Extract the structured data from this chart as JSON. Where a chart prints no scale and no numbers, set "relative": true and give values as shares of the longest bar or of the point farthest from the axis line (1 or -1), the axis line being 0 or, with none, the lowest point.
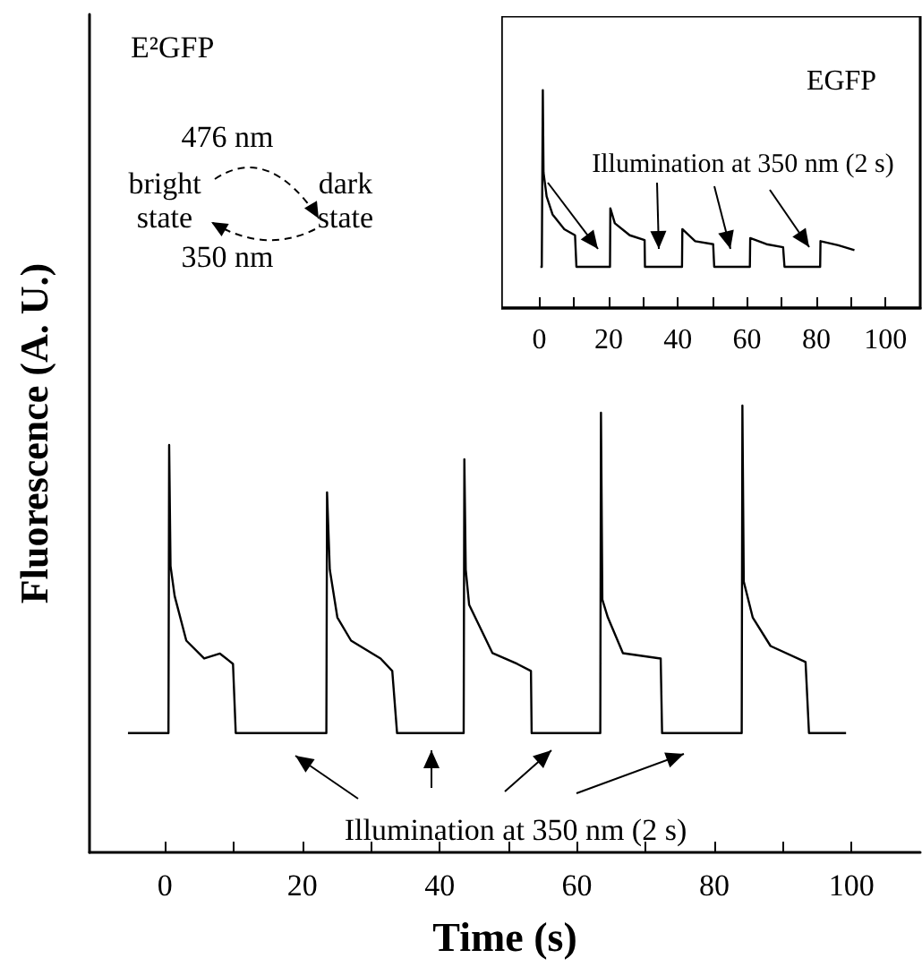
{
  "chart_data": [
    {
      "type": "line",
      "xlabel": "Time (s)",
      "ylabel": "Fluorescence (A. U.)",
      "relative": true,
      "tick_labels": "x",
      "marker": "none",
      "xlim": [
        -11,
        110
      ],
      "xticks": [
        0,
        {
          "value": 10,
          "label": null
        },
        20,
        {
          "value": 30,
          "label": null
        },
        40,
        {
          "value": 50,
          "label": null
        },
        60,
        {
          "value": 70,
          "label": null
        },
        80,
        {
          "value": 90,
          "label": null
        },
        100
      ],
      "annotations": [
        "E²GFP",
        "476 nm",
        "bright state",
        "dark state",
        "350 nm",
        "Illumination at 350 nm (2 s)"
      ],
      "series": [
        {
          "color": "#000000",
          "x": [
            -5.4,
            0.5,
            0.6,
            0.8,
            1.4,
            3.1,
            5.7,
            8,
            9.9,
            10.3,
            23.5,
            23.6,
            24,
            25.1,
            27.1,
            31.4,
            33.1,
            33.8,
            43.5,
            43.6,
            43.8,
            44.3,
            47.7,
            51.3,
            53.3,
            53.4,
            63.4,
            63.5,
            63.7,
            64.5,
            66.7,
            72.2,
            72.4,
            84,
            84.1,
            84.3,
            85.6,
            88.2,
            93.3,
            93.8,
            99.2
          ],
          "values": [
            0.267,
            0.267,
            0.912,
            0.641,
            0.574,
            0.474,
            0.434,
            0.445,
            0.422,
            0.267,
            0.267,
            0.806,
            0.633,
            0.526,
            0.474,
            0.434,
            0.406,
            0.267,
            0.267,
            0.88,
            0.633,
            0.554,
            0.446,
            0.422,
            0.406,
            0.267,
            0.267,
            0.984,
            0.566,
            0.526,
            0.446,
            0.434,
            0.267,
            0.267,
            1,
            0.606,
            0.526,
            0.462,
            0.426,
            0.267,
            0.267
          ]
        }
      ]
    },
    {
      "type": "line",
      "relative": true,
      "tick_labels": "x",
      "marker": "none",
      "xlim": [
        -11,
        110
      ],
      "xticks": [
        0,
        {
          "value": 10,
          "label": null
        },
        20,
        {
          "value": 30,
          "label": null
        },
        40,
        {
          "value": 50,
          "label": null
        },
        60,
        {
          "value": 70,
          "label": null
        },
        80,
        {
          "value": 90,
          "label": null
        },
        100
      ],
      "annotations": [
        "EGFP",
        "Illumination at 350 nm (2 s)"
      ],
      "series": [
        {
          "color": "#000000",
          "x": [
            0.3,
            0.7,
            1.0,
            1.2,
            2.1,
            3.8,
            7.2,
            10.3,
            10.7,
            20.4,
            20.5,
            21.8,
            26.1,
            30.4,
            30.5,
            41.2,
            41.3,
            45,
            50.2,
            50.5,
            60.8,
            60.9,
            65.6,
            70.4,
            70.8,
            81.1,
            81.2,
            86.3,
            91
          ],
          "values": [
            0.189,
            0.189,
            1,
            0.622,
            0.512,
            0.43,
            0.362,
            0.334,
            0.189,
            0.189,
            0.458,
            0.389,
            0.334,
            0.312,
            0.189,
            0.189,
            0.362,
            0.307,
            0.293,
            0.189,
            0.189,
            0.321,
            0.293,
            0.279,
            0.189,
            0.189,
            0.307,
            0.288,
            0.266
          ]
        }
      ]
    }
  ]
}
